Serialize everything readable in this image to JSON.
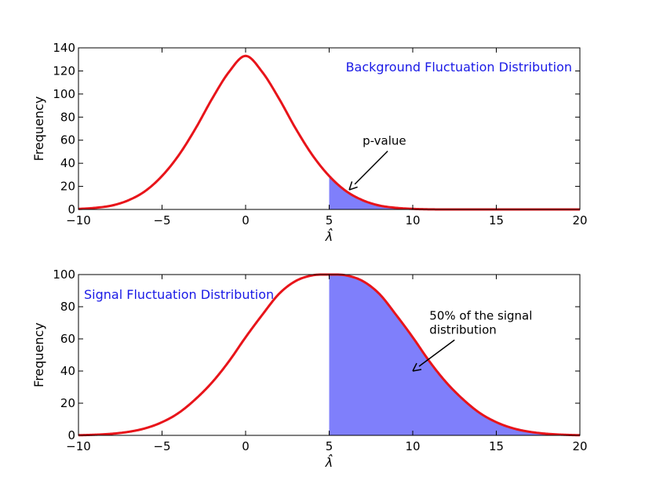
{
  "colors": {
    "curve": "#e8141a",
    "fill": "#7f7ffb",
    "title": "#1a1ae6",
    "axes": "#000000"
  },
  "chart_data": [
    {
      "type": "area",
      "title": "Background Fluctuation Distribution",
      "xlabel": "λ̂",
      "ylabel": "Frequency",
      "xlim": [
        -10,
        20
      ],
      "ylim": [
        0,
        140
      ],
      "xticks": [
        -10,
        -5,
        0,
        5,
        10,
        15,
        20
      ],
      "yticks": [
        0,
        20,
        40,
        60,
        80,
        100,
        120,
        140
      ],
      "xtick_labels": [
        "−10",
        "−5",
        "0",
        "5",
        "10",
        "15",
        "20"
      ],
      "ytick_labels": [
        "0",
        "20",
        "40",
        "60",
        "80",
        "100",
        "120",
        "140"
      ],
      "series": [
        {
          "x": [
            -10,
            -9,
            -8,
            -7,
            -6,
            -5,
            -4,
            -3,
            -2,
            -1,
            0,
            1,
            2,
            3,
            4,
            5,
            6,
            7,
            8,
            9,
            10,
            11,
            12,
            13,
            14,
            15,
            16,
            17,
            18,
            19,
            20
          ],
          "y": [
            0.5,
            1.4,
            3.4,
            8,
            16,
            29,
            47,
            70,
            96,
            119,
            133,
            119,
            96,
            70,
            47,
            29,
            16,
            8,
            3.4,
            1.4,
            0.5,
            0.1,
            0,
            0,
            0,
            0,
            0,
            0,
            0,
            0,
            0
          ]
        }
      ],
      "shaded_region": {
        "from": 5,
        "to": 20
      },
      "annotation": {
        "text": "p-value",
        "point": [
          6.2,
          17
        ],
        "text_at": [
          7,
          56
        ]
      }
    },
    {
      "type": "area",
      "title": "Signal Fluctuation Distribution",
      "xlabel": "λ̂",
      "ylabel": "Frequency",
      "xlim": [
        -10,
        20
      ],
      "ylim": [
        0,
        100
      ],
      "xticks": [
        -10,
        -5,
        0,
        5,
        10,
        15,
        20
      ],
      "yticks": [
        0,
        20,
        40,
        60,
        80,
        100
      ],
      "xtick_labels": [
        "−10",
        "−5",
        "0",
        "5",
        "10",
        "15",
        "20"
      ],
      "ytick_labels": [
        "0",
        "20",
        "40",
        "60",
        "80",
        "100"
      ],
      "series": [
        {
          "x": [
            -10,
            -9,
            -8,
            -7,
            -6,
            -5,
            -4,
            -3,
            -2,
            -1,
            0,
            1,
            2,
            3,
            4,
            5,
            6,
            7,
            8,
            9,
            10,
            11,
            12,
            13,
            14,
            15,
            16,
            17,
            18,
            19,
            20
          ],
          "y": [
            0.1,
            0.4,
            1,
            2.2,
            4.4,
            8.2,
            14,
            22.5,
            33,
            46,
            61,
            75,
            88,
            96,
            99.5,
            100,
            99.5,
            96,
            88,
            75,
            61,
            46,
            33,
            22.5,
            14,
            8.2,
            4.4,
            2.2,
            1,
            0.4,
            0.1
          ]
        }
      ],
      "shaded_region": {
        "from": 5,
        "to": 20
      },
      "annotation": {
        "text": "50% of the signal\ndistribution",
        "point": [
          10,
          40
        ],
        "text_at": [
          11,
          72
        ]
      }
    }
  ]
}
